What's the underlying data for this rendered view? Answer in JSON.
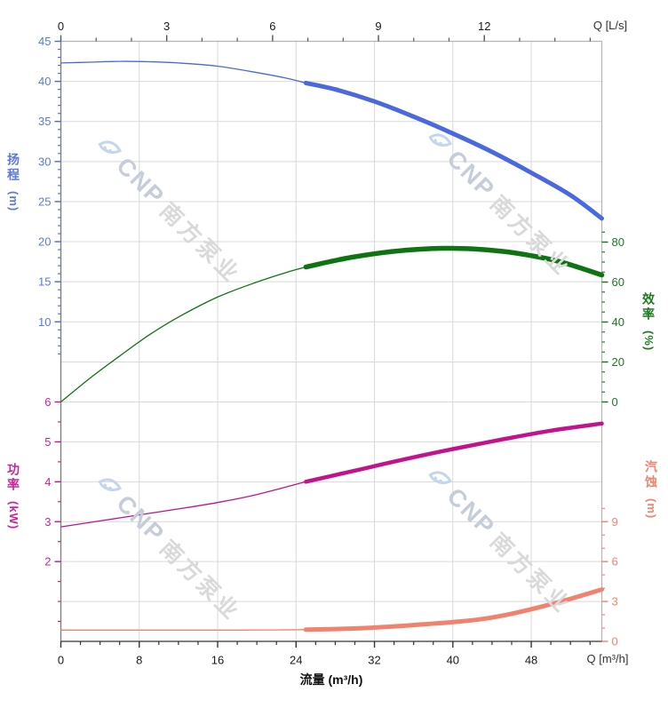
{
  "watermark": {
    "cnp": "CNP",
    "chinese": "南方泵业"
  },
  "chart_data": {
    "type": "line",
    "title": "",
    "x_bottom": {
      "axis_title": "流量 (m³/h)",
      "unit_label": "Q [m³/h]",
      "ticks": [
        0,
        8,
        16,
        24,
        32,
        40,
        48
      ],
      "minor_step": 2,
      "range": [
        0,
        55.2
      ]
    },
    "x_top": {
      "unit_label": "Q [L/s]",
      "ticks": [
        0,
        3,
        6,
        9,
        12
      ],
      "minor_step": 1,
      "range": [
        0,
        15.33
      ]
    },
    "axes": {
      "head": {
        "label": "扬程",
        "unit": "(m)",
        "color": "#4a68e0",
        "label_color": "#5b78e4",
        "ticks": [
          45,
          40,
          35,
          30,
          25,
          20,
          15,
          10
        ],
        "minor_step": 1,
        "range": [
          0,
          45
        ],
        "section": "top"
      },
      "efficiency": {
        "label": "效率",
        "unit": "(%)",
        "color": "#0e7412",
        "label_color": "#1b7a1e",
        "ticks": [
          80,
          60,
          40,
          20,
          0
        ],
        "minor_step": 5,
        "range": [
          0,
          90
        ],
        "section": "top"
      },
      "power": {
        "label": "功率",
        "unit": "(kW)",
        "color": "#c2138c",
        "label_color": "#c8249a",
        "ticks": [
          6,
          5,
          4,
          3,
          2
        ],
        "minor_step": 0.5,
        "range": [
          0,
          6
        ],
        "section": "bottom"
      },
      "npsh": {
        "label": "汽蚀",
        "unit": "(m)",
        "color": "#f0826e",
        "label_color": "#f0826e",
        "ticks": [
          9,
          6,
          3,
          0
        ],
        "minor_step": 1,
        "range": [
          0,
          18
        ],
        "section": "bottom"
      }
    },
    "grid": true,
    "legend": "none",
    "series": [
      {
        "name": "head",
        "axis": "head",
        "color": "#4a68e0",
        "thin": [
          [
            0,
            42.3
          ],
          [
            3,
            42.4
          ],
          [
            6,
            42.5
          ],
          [
            9,
            42.45
          ],
          [
            12,
            42.3
          ],
          [
            16,
            41.9
          ],
          [
            20,
            41.1
          ],
          [
            23,
            40.4
          ],
          [
            25,
            39.8
          ]
        ],
        "thick": [
          [
            25,
            39.8
          ],
          [
            28,
            39.0
          ],
          [
            32,
            37.5
          ],
          [
            36,
            35.6
          ],
          [
            40,
            33.5
          ],
          [
            44,
            31.2
          ],
          [
            48,
            28.6
          ],
          [
            52,
            25.8
          ],
          [
            55.2,
            22.9
          ]
        ]
      },
      {
        "name": "efficiency",
        "axis": "efficiency",
        "color": "#0e7412",
        "thin": [
          [
            0,
            0
          ],
          [
            3,
            12
          ],
          [
            6,
            23
          ],
          [
            9,
            33.5
          ],
          [
            12,
            42.5
          ],
          [
            16,
            52.5
          ],
          [
            20,
            60
          ],
          [
            23,
            64.8
          ],
          [
            25,
            67.5
          ]
        ],
        "thick": [
          [
            25,
            67.5
          ],
          [
            29,
            71.8
          ],
          [
            33,
            74.8
          ],
          [
            36,
            76.2
          ],
          [
            39,
            76.9
          ],
          [
            42,
            76.6
          ],
          [
            45,
            75.4
          ],
          [
            48,
            73.2
          ],
          [
            51,
            70.1
          ],
          [
            55.2,
            63.5
          ]
        ]
      },
      {
        "name": "power",
        "axis": "power",
        "color": "#c2138c",
        "thin": [
          [
            0,
            2.87
          ],
          [
            4,
            3.02
          ],
          [
            8,
            3.17
          ],
          [
            12,
            3.32
          ],
          [
            16,
            3.48
          ],
          [
            20,
            3.68
          ],
          [
            25,
            4.0
          ]
        ],
        "thick": [
          [
            25,
            4.0
          ],
          [
            30,
            4.28
          ],
          [
            35,
            4.56
          ],
          [
            40,
            4.82
          ],
          [
            45,
            5.06
          ],
          [
            50,
            5.28
          ],
          [
            55.2,
            5.46
          ]
        ]
      },
      {
        "name": "npsh",
        "axis": "npsh",
        "color": "#f0826e",
        "thin": [
          [
            0,
            0.85
          ],
          [
            6,
            0.85
          ],
          [
            12,
            0.85
          ],
          [
            18,
            0.85
          ],
          [
            22,
            0.86
          ],
          [
            25,
            0.88
          ]
        ],
        "thick": [
          [
            25,
            0.88
          ],
          [
            28,
            0.93
          ],
          [
            31,
            1.0
          ],
          [
            34,
            1.13
          ],
          [
            37,
            1.28
          ],
          [
            40,
            1.45
          ],
          [
            43,
            1.68
          ],
          [
            46,
            2.08
          ],
          [
            49,
            2.6
          ],
          [
            52,
            3.2
          ],
          [
            55.2,
            3.9
          ]
        ]
      }
    ]
  }
}
